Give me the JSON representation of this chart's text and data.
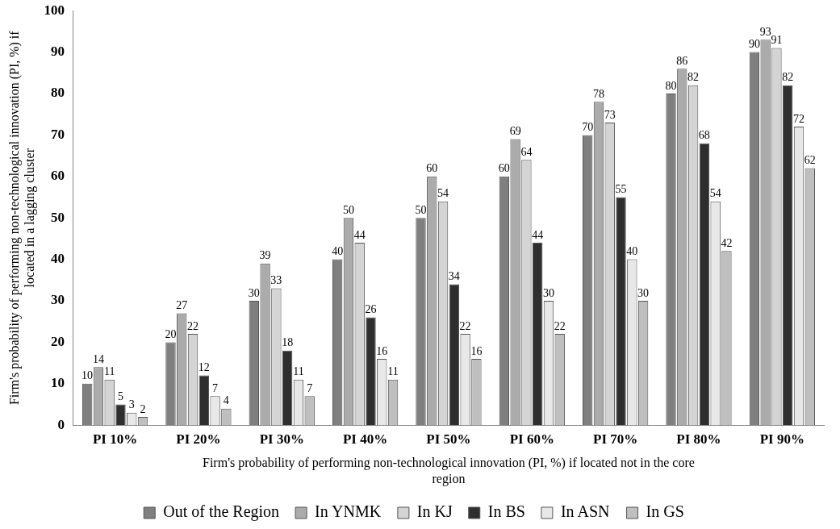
{
  "chart_data": {
    "type": "bar",
    "xlabel": "Firm's probability of performing non-technological innovation (PI, %) if located not in the core region",
    "ylabel": "Firm's probability of performing non-technological innovation (PI, %) if located in a lagging cluster",
    "categories": [
      "PI 10%",
      "PI 20%",
      "PI 30%",
      "PI 40%",
      "PI 50%",
      "PI 60%",
      "PI 70%",
      "PI 80%",
      "PI 90%"
    ],
    "series": [
      {
        "name": "Out of the Region",
        "color": "#7f7f7f",
        "values": [
          10,
          20,
          30,
          40,
          50,
          60,
          70,
          80,
          90
        ]
      },
      {
        "name": "In YNMK",
        "color": "#ababab",
        "values": [
          14,
          27,
          39,
          50,
          60,
          69,
          78,
          86,
          93
        ]
      },
      {
        "name": "In KJ",
        "color": "#d4d4d4",
        "values": [
          11,
          22,
          33,
          44,
          54,
          64,
          73,
          82,
          91
        ]
      },
      {
        "name": "In BS",
        "color": "#2e2e2e",
        "values": [
          5,
          12,
          18,
          26,
          34,
          44,
          55,
          68,
          82
        ]
      },
      {
        "name": "In ASN",
        "color": "#e8e8e8",
        "values": [
          3,
          7,
          11,
          16,
          22,
          30,
          40,
          54,
          72
        ]
      },
      {
        "name": "In GS",
        "color": "#bfbfbf",
        "values": [
          2,
          4,
          7,
          11,
          16,
          22,
          30,
          42,
          62
        ]
      }
    ],
    "ylim": [
      0,
      100
    ],
    "yticks": [
      0,
      10,
      20,
      30,
      40,
      50,
      60,
      70,
      80,
      90,
      100
    ],
    "grid": false,
    "legend": "bottom",
    "data_labels": true
  }
}
